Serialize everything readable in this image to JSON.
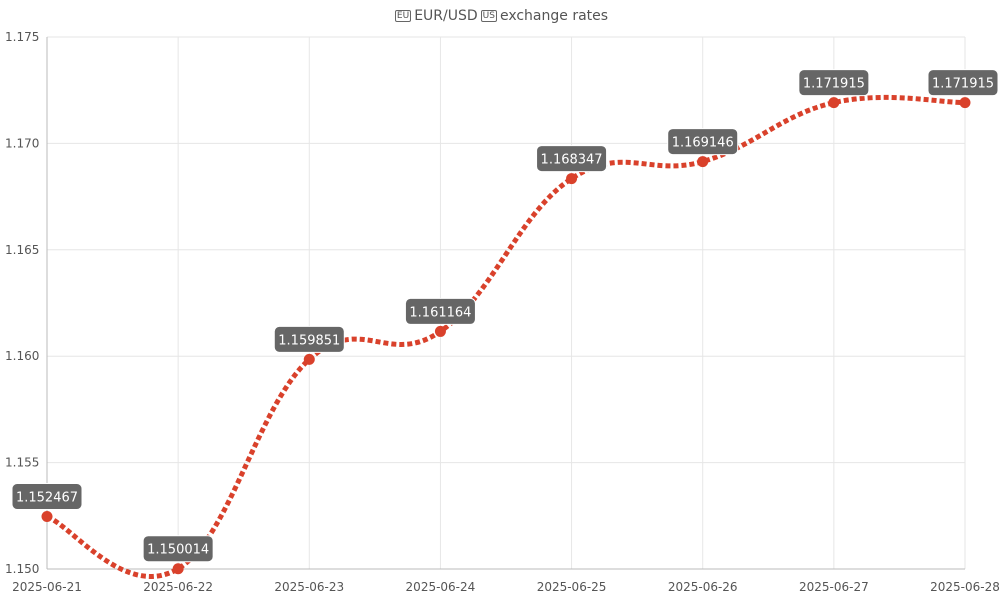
{
  "title": {
    "pair_flag_left": "EU",
    "pair": "EUR/USD",
    "pair_flag_right": "US",
    "suffix": "exchange rates"
  },
  "colors": {
    "series": "#d9412b",
    "grid": "#e6e6e6",
    "axis": "#bbbbbb",
    "label_bg": "#666666",
    "label_text": "#ffffff",
    "tick_text": "#555555"
  },
  "chart_data": {
    "type": "line",
    "title": "EUR/USD exchange rates",
    "x": [
      "2025-06-21",
      "2025-06-22",
      "2025-06-23",
      "2025-06-24",
      "2025-06-25",
      "2025-06-26",
      "2025-06-27",
      "2025-06-28"
    ],
    "series": [
      {
        "values": [
          1.152467,
          1.150014,
          1.159851,
          1.161164,
          1.168347,
          1.169146,
          1.171915,
          1.171915
        ],
        "data_labels": [
          "1.152467",
          "1.150014",
          "1.159851",
          "1.161164",
          "1.168347",
          "1.169146",
          "1.171915",
          "1.171915"
        ]
      }
    ],
    "ylim": [
      1.15,
      1.175
    ],
    "yticks": [
      1.15,
      1.155,
      1.16,
      1.165,
      1.17,
      1.175
    ],
    "ytick_labels": [
      "1.150",
      "1.155",
      "1.160",
      "1.165",
      "1.170",
      "1.175"
    ],
    "line_style": "dotted",
    "smooth": true,
    "grid": true,
    "legend": "none"
  }
}
